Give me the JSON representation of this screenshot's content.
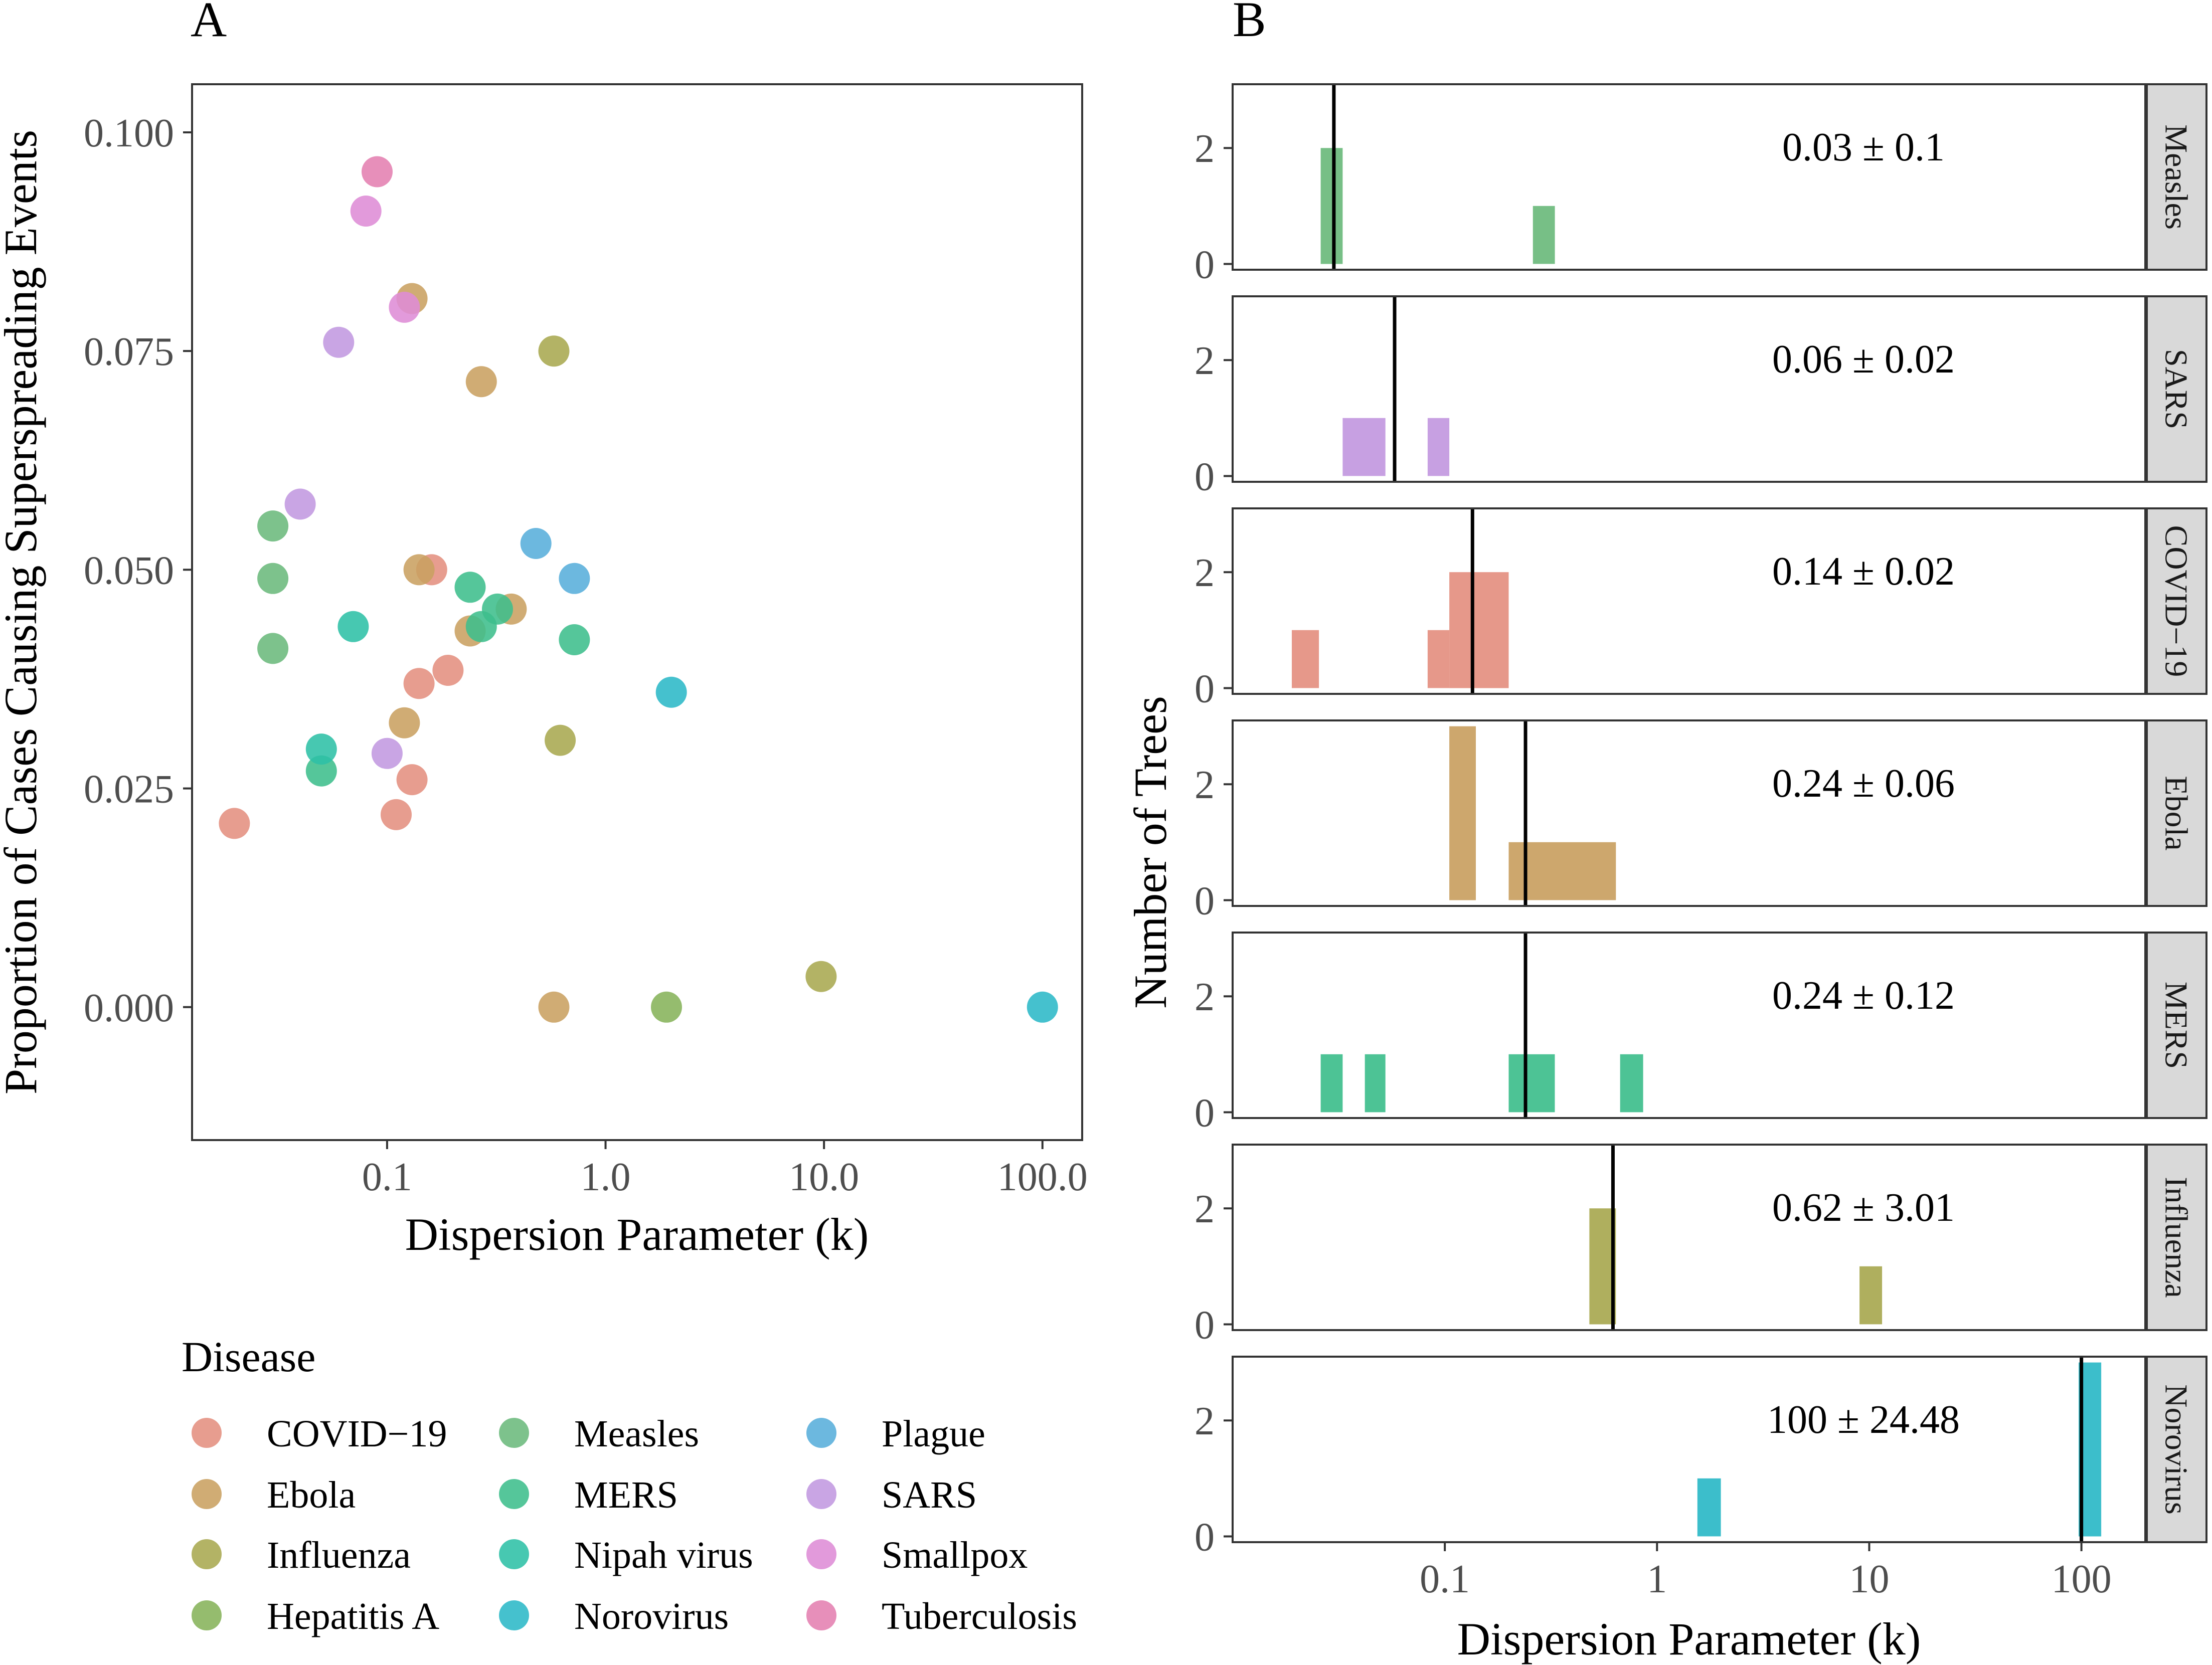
{
  "chart_data": [
    {
      "panel": "A",
      "type": "scatter",
      "xlabel": "Dispersion Parameter (k)",
      "ylabel": "Proportion of Cases Causing Superspreading Events",
      "xscale": "log10",
      "xlim": [
        0.0128,
        152
      ],
      "ylim": [
        -0.0152,
        0.1055
      ],
      "xticks": [
        {
          "value": 0.1,
          "label": "0.1"
        },
        {
          "value": 1,
          "label": "1.0"
        },
        {
          "value": 10,
          "label": "10.0"
        },
        {
          "value": 100,
          "label": "100.0"
        }
      ],
      "yticks": [
        {
          "value": 0.0,
          "label": "0.000"
        },
        {
          "value": 0.025,
          "label": "0.025"
        },
        {
          "value": 0.05,
          "label": "0.050"
        },
        {
          "value": 0.075,
          "label": "0.075"
        },
        {
          "value": 0.1,
          "label": "0.100"
        }
      ],
      "grid": false,
      "legend": {
        "title": "Disease",
        "placement": "bottom",
        "entries": [
          {
            "name": "COVID−19",
            "color": "#E48F80"
          },
          {
            "name": "Ebola",
            "color": "#C9A061"
          },
          {
            "name": "Influenza",
            "color": "#A8A850"
          },
          {
            "name": "Hepatitis A",
            "color": "#86B35A"
          },
          {
            "name": "Measles",
            "color": "#6BBA7C"
          },
          {
            "name": "MERS",
            "color": "#3EBE8C"
          },
          {
            "name": "Nipah virus",
            "color": "#2EC0A6"
          },
          {
            "name": "Norovirus",
            "color": "#2BB8C7"
          },
          {
            "name": "Plague",
            "color": "#58AEDB"
          },
          {
            "name": "SARS",
            "color": "#C298E0"
          },
          {
            "name": "Smallpox",
            "color": "#DE8CD6"
          },
          {
            "name": "Tuberculosis",
            "color": "#E480B1"
          }
        ]
      },
      "series": [
        {
          "name": "COVID−19",
          "color": "#E48F80",
          "points": [
            [
              0.02,
              0.021
            ],
            [
              0.11,
              0.022
            ],
            [
              0.13,
              0.026
            ],
            [
              0.14,
              0.037
            ],
            [
              0.16,
              0.05
            ],
            [
              0.19,
              0.0385
            ]
          ]
        },
        {
          "name": "Ebola",
          "color": "#C9A061",
          "points": [
            [
              0.13,
              0.081
            ],
            [
              0.27,
              0.0715
            ],
            [
              0.14,
              0.05
            ],
            [
              0.24,
              0.043
            ],
            [
              0.37,
              0.0455
            ],
            [
              0.12,
              0.0325
            ],
            [
              0.58,
              0.0
            ]
          ]
        },
        {
          "name": "Influenza",
          "color": "#A8A850",
          "points": [
            [
              0.58,
              0.075
            ],
            [
              0.62,
              0.0305
            ],
            [
              9.7,
              0.0035
            ]
          ]
        },
        {
          "name": "Hepatitis A",
          "color": "#86B35A",
          "points": [
            [
              1.9,
              0.0
            ]
          ]
        },
        {
          "name": "Measles",
          "color": "#6BBA7C",
          "points": [
            [
              0.03,
              0.055
            ],
            [
              0.03,
              0.049
            ],
            [
              0.03,
              0.041
            ]
          ]
        },
        {
          "name": "MERS",
          "color": "#3EBE8C",
          "points": [
            [
              0.24,
              0.048
            ],
            [
              0.32,
              0.0455
            ],
            [
              0.27,
              0.0435
            ],
            [
              0.72,
              0.042
            ],
            [
              0.05,
              0.027
            ]
          ]
        },
        {
          "name": "Nipah virus",
          "color": "#2EC0A6",
          "points": [
            [
              0.07,
              0.0435
            ],
            [
              0.05,
              0.0295
            ]
          ]
        },
        {
          "name": "Norovirus",
          "color": "#2BB8C7",
          "points": [
            [
              2.0,
              0.036
            ],
            [
              100,
              0.0
            ]
          ]
        },
        {
          "name": "Plague",
          "color": "#58AEDB",
          "points": [
            [
              0.48,
              0.053
            ],
            [
              0.72,
              0.049
            ]
          ]
        },
        {
          "name": "SARS",
          "color": "#C298E0",
          "points": [
            [
              0.06,
              0.076
            ],
            [
              0.04,
              0.0575
            ],
            [
              0.1,
              0.029
            ]
          ]
        },
        {
          "name": "Smallpox",
          "color": "#DE8CD6",
          "points": [
            [
              0.08,
              0.091
            ],
            [
              0.12,
              0.08
            ]
          ]
        },
        {
          "name": "Tuberculosis",
          "color": "#E480B1",
          "points": [
            [
              0.09,
              0.0955
            ]
          ]
        }
      ]
    },
    {
      "panel": "B",
      "type": "bar",
      "subtype": "faceted histogram",
      "xlabel": "Dispersion Parameter (k)",
      "ylabel": "Number of Trees",
      "xscale": "log10",
      "xlim": [
        0.01,
        200
      ],
      "ylim": [
        -0.1,
        3.1
      ],
      "xticks": [
        {
          "value": 0.1,
          "label": "0.1"
        },
        {
          "value": 1,
          "label": "1"
        },
        {
          "value": 10,
          "label": "10"
        },
        {
          "value": 100,
          "label": "100"
        }
      ],
      "yticks": [
        {
          "value": 0,
          "label": "0"
        },
        {
          "value": 2,
          "label": "2"
        }
      ],
      "bar_value_note": "bars drawn from count 0 up to the given count; counts are read off the 0 and 2 gridlines",
      "facets": [
        {
          "name": "Measles",
          "color": "#6BBA7C",
          "median": 0.03,
          "annotation": "0.03 ± 0.1",
          "bars": [
            {
              "x0": 0.026,
              "x1": 0.033,
              "count": 2
            },
            {
              "x0": 0.26,
              "x1": 0.33,
              "count": 1
            }
          ]
        },
        {
          "name": "SARS",
          "color": "#C298E0",
          "median": 0.058,
          "annotation": "0.06 ± 0.02",
          "bars": [
            {
              "x0": 0.033,
              "x1": 0.0525,
              "count": 1
            },
            {
              "x0": 0.083,
              "x1": 0.105,
              "count": 1
            }
          ]
        },
        {
          "name": "COVID−19",
          "color": "#E48F80",
          "median": 0.135,
          "annotation": "0.14 ± 0.02",
          "bars": [
            {
              "x0": 0.019,
              "x1": 0.0255,
              "count": 1
            },
            {
              "x0": 0.083,
              "x1": 0.105,
              "count": 1
            },
            {
              "x0": 0.105,
              "x1": 0.2,
              "count": 2
            }
          ]
        },
        {
          "name": "Ebola",
          "color": "#C9A061",
          "median": 0.24,
          "annotation": "0.24 ± 0.06",
          "bars": [
            {
              "x0": 0.105,
              "x1": 0.14,
              "count": 3
            },
            {
              "x0": 0.2,
              "x1": 0.64,
              "count": 1
            }
          ]
        },
        {
          "name": "MERS",
          "color": "#3EBE8C",
          "median": 0.24,
          "annotation": "0.24 ± 0.12",
          "bars": [
            {
              "x0": 0.026,
              "x1": 0.033,
              "count": 1
            },
            {
              "x0": 0.042,
              "x1": 0.0525,
              "count": 1
            },
            {
              "x0": 0.2,
              "x1": 0.33,
              "count": 1
            },
            {
              "x0": 0.67,
              "x1": 0.86,
              "count": 1
            }
          ]
        },
        {
          "name": "Influenza",
          "color": "#A8A850",
          "median": 0.62,
          "annotation": "0.62 ± 3.01",
          "bars": [
            {
              "x0": 0.48,
              "x1": 0.64,
              "count": 2
            },
            {
              "x0": 9.0,
              "x1": 11.5,
              "count": 1
            }
          ]
        },
        {
          "name": "Norovirus",
          "color": "#2BB8C7",
          "median": 100,
          "annotation": "100 ± 24.48",
          "bars": [
            {
              "x0": 1.55,
              "x1": 2.0,
              "count": 1
            },
            {
              "x0": 97,
              "x1": 124,
              "count": 3
            }
          ]
        }
      ]
    }
  ],
  "panel_labels": {
    "a": "A",
    "b": "B"
  }
}
